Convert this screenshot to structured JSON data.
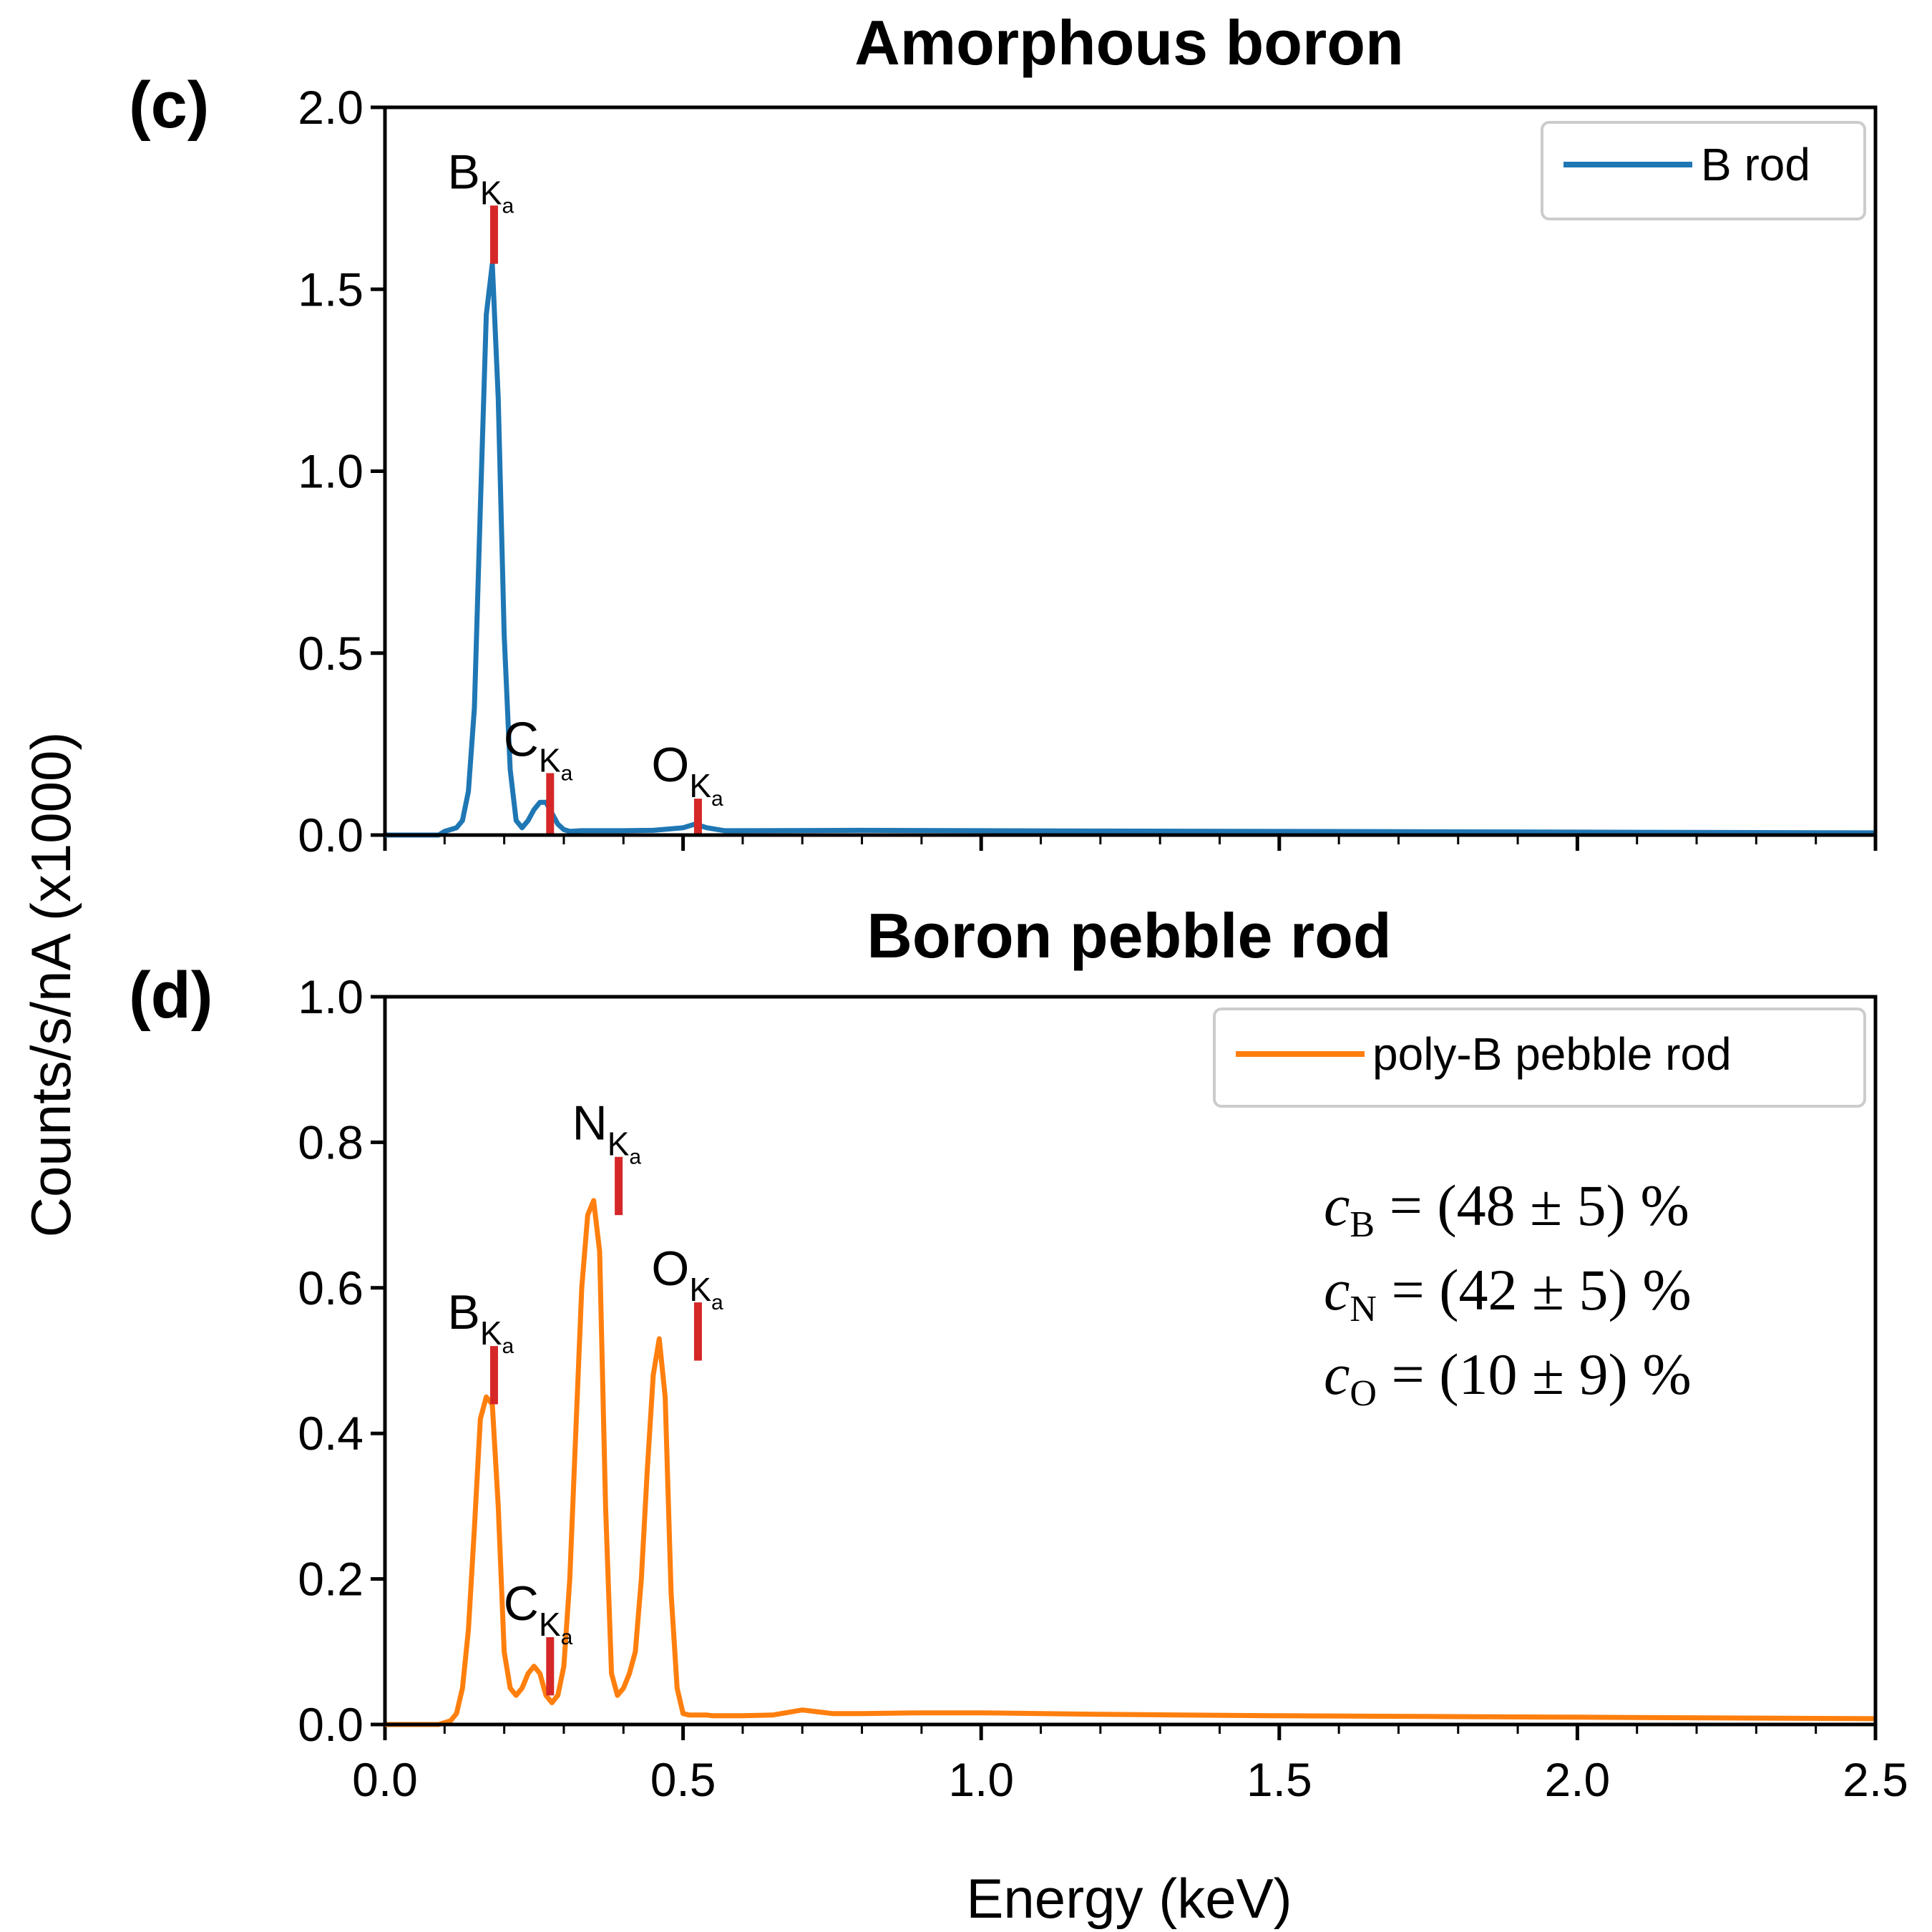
{
  "figure": {
    "ylabel": "Counts/s/nA (x1000)",
    "xlabel": "Energy (keV)"
  },
  "colors": {
    "b_rod": "#1f77b4",
    "poly_b": "#ff7f0e",
    "marker": "#d62728"
  },
  "chart_data": [
    {
      "type": "line",
      "panel": "(c)",
      "title": "Amorphous boron",
      "xlim": [
        0,
        2.5
      ],
      "ylim": [
        0,
        2.0
      ],
      "xticks": [
        "0.0",
        "0.5",
        "1.0",
        "1.5",
        "2.0",
        "2.5"
      ],
      "yticks": [
        "0.0",
        "0.5",
        "1.0",
        "1.5",
        "2.0"
      ],
      "legend": {
        "placement": "top-right"
      },
      "series": [
        {
          "name": "B rod",
          "color": "#1f77b4",
          "x": [
            0.0,
            0.09,
            0.1,
            0.12,
            0.13,
            0.14,
            0.15,
            0.16,
            0.17,
            0.18,
            0.19,
            0.2,
            0.21,
            0.22,
            0.23,
            0.24,
            0.25,
            0.26,
            0.27,
            0.28,
            0.29,
            0.3,
            0.31,
            0.33,
            0.35,
            0.4,
            0.45,
            0.5,
            0.52,
            0.54,
            0.57,
            0.6,
            0.8,
            1.0,
            1.2,
            1.5,
            2.0,
            2.5
          ],
          "y": [
            0.0,
            0.0,
            0.01,
            0.02,
            0.04,
            0.12,
            0.35,
            0.9,
            1.43,
            1.57,
            1.2,
            0.55,
            0.18,
            0.04,
            0.02,
            0.04,
            0.07,
            0.09,
            0.09,
            0.06,
            0.03,
            0.015,
            0.01,
            0.012,
            0.012,
            0.012,
            0.013,
            0.02,
            0.03,
            0.02,
            0.012,
            0.012,
            0.013,
            0.012,
            0.011,
            0.01,
            0.008,
            0.006
          ]
        }
      ],
      "peaks": [
        {
          "element": "B",
          "sub": "K",
          "subsub": "a",
          "x": 0.183,
          "ymin": 1.57,
          "ymax": 1.73
        },
        {
          "element": "C",
          "sub": "K",
          "subsub": "a",
          "x": 0.277,
          "ymin": 0.0,
          "ymax": 0.17
        },
        {
          "element": "O",
          "sub": "K",
          "subsub": "a",
          "x": 0.525,
          "ymin": 0.0,
          "ymax": 0.1
        }
      ]
    },
    {
      "type": "line",
      "panel": "(d)",
      "title": "Boron pebble rod",
      "xlim": [
        0,
        2.5
      ],
      "ylim": [
        0,
        1.0
      ],
      "xticks": [
        "0.0",
        "0.5",
        "1.0",
        "1.5",
        "2.0",
        "2.5"
      ],
      "yticks": [
        "0.0",
        "0.2",
        "0.4",
        "0.6",
        "0.8",
        "1.0"
      ],
      "legend": {
        "placement": "top-right"
      },
      "series": [
        {
          "name": "poly-B pebble rod",
          "color": "#ff7f0e",
          "x": [
            0.0,
            0.09,
            0.11,
            0.12,
            0.13,
            0.14,
            0.15,
            0.16,
            0.17,
            0.18,
            0.19,
            0.2,
            0.21,
            0.22,
            0.23,
            0.24,
            0.25,
            0.26,
            0.27,
            0.28,
            0.29,
            0.3,
            0.31,
            0.32,
            0.33,
            0.34,
            0.35,
            0.36,
            0.37,
            0.38,
            0.39,
            0.4,
            0.41,
            0.42,
            0.43,
            0.44,
            0.45,
            0.46,
            0.47,
            0.48,
            0.49,
            0.5,
            0.51,
            0.52,
            0.53,
            0.54,
            0.55,
            0.56,
            0.57,
            0.58,
            0.6,
            0.65,
            0.7,
            0.75,
            0.8,
            0.9,
            1.0,
            1.2,
            1.5,
            1.75,
            2.0,
            2.5
          ],
          "y": [
            0.0,
            0.0,
            0.005,
            0.015,
            0.05,
            0.13,
            0.27,
            0.42,
            0.45,
            0.44,
            0.3,
            0.1,
            0.05,
            0.04,
            0.05,
            0.07,
            0.08,
            0.07,
            0.04,
            0.03,
            0.04,
            0.08,
            0.2,
            0.4,
            0.6,
            0.7,
            0.72,
            0.65,
            0.3,
            0.07,
            0.04,
            0.05,
            0.07,
            0.1,
            0.2,
            0.35,
            0.48,
            0.53,
            0.45,
            0.18,
            0.05,
            0.015,
            0.013,
            0.013,
            0.013,
            0.013,
            0.012,
            0.012,
            0.012,
            0.012,
            0.012,
            0.013,
            0.02,
            0.015,
            0.015,
            0.016,
            0.016,
            0.014,
            0.012,
            0.011,
            0.01,
            0.008
          ]
        }
      ],
      "peaks": [
        {
          "element": "B",
          "sub": "K",
          "subsub": "a",
          "x": 0.183,
          "ymin": 0.44,
          "ymax": 0.52
        },
        {
          "element": "C",
          "sub": "K",
          "subsub": "a",
          "x": 0.277,
          "ymin": 0.04,
          "ymax": 0.12
        },
        {
          "element": "N",
          "sub": "K",
          "subsub": "a",
          "x": 0.392,
          "ymin": 0.7,
          "ymax": 0.78
        },
        {
          "element": "O",
          "sub": "K",
          "subsub": "a",
          "x": 0.525,
          "ymin": 0.5,
          "ymax": 0.58
        }
      ],
      "annotation": [
        {
          "symbol": "c",
          "sub": "B",
          "text": "= (48 ± 5) %"
        },
        {
          "symbol": "c",
          "sub": "N",
          "text": "= (42 ± 5) %"
        },
        {
          "symbol": "c",
          "sub": "O",
          "text": "= (10 ± 9) %"
        }
      ]
    }
  ]
}
